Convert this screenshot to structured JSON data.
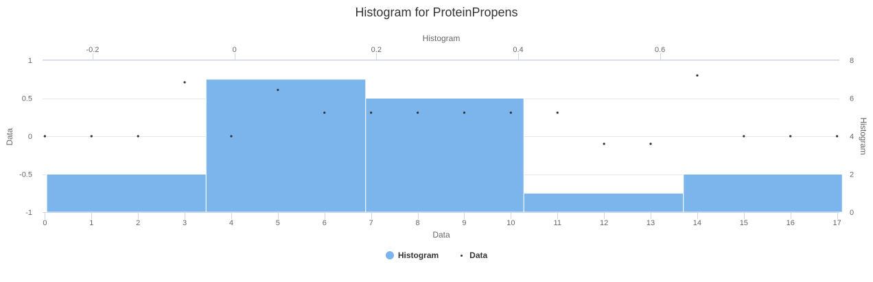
{
  "chart_data": {
    "type": "bar",
    "title": "Histogram for ProteinPropens",
    "colors": {
      "histogram": "#7cb5ec",
      "data": "#333333",
      "grid": "#e6e6e6",
      "axis_text": "#666666"
    },
    "x_bottom": {
      "label": "Data",
      "range": [
        -0.05,
        17.05
      ],
      "ticks": [
        0,
        1,
        2,
        3,
        4,
        5,
        6,
        7,
        8,
        9,
        10,
        11,
        12,
        13,
        14,
        15,
        16,
        17
      ]
    },
    "x_top": {
      "label": "Histogram",
      "range": [
        -0.2706,
        0.8529
      ],
      "ticks": [
        -0.2,
        0,
        0.2,
        0.4,
        0.6
      ],
      "tick_labels": [
        "-0.2",
        "0",
        "0.2",
        "0.4",
        "0.6"
      ]
    },
    "y_left": {
      "label": "Data",
      "range": [
        -1,
        1
      ],
      "ticks": [
        -1,
        -0.5,
        0,
        0.5,
        1
      ],
      "tick_labels": [
        "-1",
        "-0.5",
        "0",
        "0.5",
        "1"
      ]
    },
    "y_right": {
      "label": "Histogram",
      "range": [
        0,
        8
      ],
      "ticks": [
        0,
        2,
        4,
        6,
        8
      ],
      "tick_labels": [
        "0",
        "2",
        "4",
        "6",
        "8"
      ]
    },
    "series": [
      {
        "name": "Histogram",
        "type": "bar",
        "bins": [
          {
            "from": -0.2647,
            "to": -0.04,
            "value": 2
          },
          {
            "from": -0.04,
            "to": 0.185,
            "value": 7
          },
          {
            "from": 0.185,
            "to": 0.408,
            "value": 6
          },
          {
            "from": 0.408,
            "to": 0.633,
            "value": 1
          },
          {
            "from": 0.633,
            "to": 0.857,
            "value": 2
          }
        ]
      },
      {
        "name": "Data",
        "type": "scatter",
        "x": [
          0,
          1,
          2,
          3,
          4,
          5,
          6,
          7,
          8,
          9,
          10,
          11,
          12,
          13,
          14,
          15,
          16,
          17
        ],
        "y": [
          0,
          0,
          0,
          0.71,
          0,
          0.61,
          0.31,
          0.31,
          0.31,
          0.31,
          0.31,
          0.31,
          -0.1,
          -0.1,
          0.8,
          0,
          0,
          0
        ]
      }
    ],
    "grid": true,
    "legend": "bottom-center"
  }
}
